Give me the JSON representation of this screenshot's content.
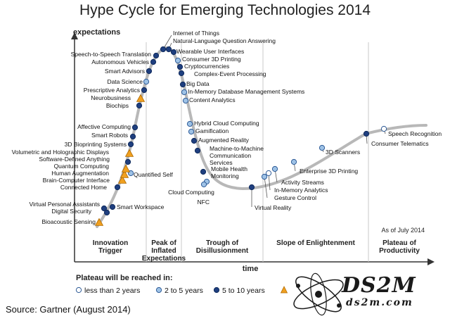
{
  "title": "Hype Cycle for Emerging Technologies 2014",
  "source": "Source: Gartner (August 2014)",
  "watermark": {
    "main": "DS2M",
    "sub": "ds2m.com"
  },
  "colors": {
    "curve": "#b8b8b8",
    "axis": "#333333",
    "dark": "#1f3f7f",
    "light": "#9ec2e6",
    "white": "#ffffff",
    "orange": "#f0a020",
    "orange_stroke": "#b06a00"
  },
  "chart_data": {
    "type": "scatter",
    "title": "Hype Cycle for Emerging Technologies 2014",
    "ylabel": "expectations",
    "xlabel": "time",
    "as_of": "As of July 2014",
    "phases": [
      "Innovation Trigger",
      "Peak of Inflated Expectations",
      "Trough of Disillusionment",
      "Slope of Enlightenment",
      "Plateau of Productivity"
    ],
    "legend": {
      "title": "Plateau will be reached in:",
      "items": [
        {
          "label": "less than 2 years",
          "key": "white"
        },
        {
          "label": "2 to 5 years",
          "key": "light"
        },
        {
          "label": "5 to 10 years",
          "key": "dark"
        },
        {
          "label": "",
          "key": "orange"
        }
      ]
    },
    "technologies": [
      {
        "name": "Bioacoustic Sensing",
        "plateau": "orange"
      },
      {
        "name": "Digital Security",
        "plateau": "dark"
      },
      {
        "name": "Virtual Personal Assistants",
        "plateau": "dark"
      },
      {
        "name": "Smart Workspace",
        "plateau": "dark"
      },
      {
        "name": "Connected Home",
        "plateau": "dark"
      },
      {
        "name": "Quantified Self",
        "plateau": "light"
      },
      {
        "name": "Brain-Computer Interface",
        "plateau": "orange"
      },
      {
        "name": "Human Augmentation",
        "plateau": "orange"
      },
      {
        "name": "Quantum Computing",
        "plateau": "orange"
      },
      {
        "name": "Software-Defined Anything",
        "plateau": "dark"
      },
      {
        "name": "Volumetric and Holographic Displays",
        "plateau": "orange"
      },
      {
        "name": "3D Bioprinting Systems",
        "plateau": "dark"
      },
      {
        "name": "Smart Robots",
        "plateau": "dark"
      },
      {
        "name": "Affective Computing",
        "plateau": "dark"
      },
      {
        "name": "Biochips",
        "plateau": "dark"
      },
      {
        "name": "Neurobusiness",
        "plateau": "orange"
      },
      {
        "name": "Prescriptive Analytics",
        "plateau": "dark"
      },
      {
        "name": "Data Science",
        "plateau": "light"
      },
      {
        "name": "Smart Advisors",
        "plateau": "dark"
      },
      {
        "name": "Autonomous Vehicles",
        "plateau": "dark"
      },
      {
        "name": "Speech-to-Speech Translation",
        "plateau": "dark"
      },
      {
        "name": "Internet of Things",
        "plateau": "dark"
      },
      {
        "name": "Natural-Language Question Answering",
        "plateau": "dark"
      },
      {
        "name": "Wearable User Interfaces",
        "plateau": "dark"
      },
      {
        "name": "Consumer 3D Printing",
        "plateau": "light"
      },
      {
        "name": "Cryptocurrencies",
        "plateau": "dark"
      },
      {
        "name": "Complex-Event Processing",
        "plateau": "dark"
      },
      {
        "name": "Big Data",
        "plateau": "dark"
      },
      {
        "name": "In-Memory Database Management Systems",
        "plateau": "light"
      },
      {
        "name": "Content Analytics",
        "plateau": "light"
      },
      {
        "name": "Hybrid Cloud Computing",
        "plateau": "light"
      },
      {
        "name": "Gamification",
        "plateau": "light"
      },
      {
        "name": "Augmented Reality",
        "plateau": "dark"
      },
      {
        "name": "Machine-to-Machine Communication Services",
        "plateau": "dark"
      },
      {
        "name": "Mobile Health Monitoring",
        "plateau": "dark"
      },
      {
        "name": "NFC",
        "plateau": "light"
      },
      {
        "name": "Cloud Computing",
        "plateau": "light"
      },
      {
        "name": "Virtual Reality",
        "plateau": "dark"
      },
      {
        "name": "Gesture Control",
        "plateau": "light"
      },
      {
        "name": "In-Memory Analytics",
        "plateau": "white"
      },
      {
        "name": "Activity Streams",
        "plateau": "light"
      },
      {
        "name": "Enterprise 3D Printing",
        "plateau": "light"
      },
      {
        "name": "3D Scanners",
        "plateau": "light"
      },
      {
        "name": "Consumer Telematics",
        "plateau": "dark"
      },
      {
        "name": "Speech Recognition",
        "plateau": "white"
      }
    ]
  }
}
